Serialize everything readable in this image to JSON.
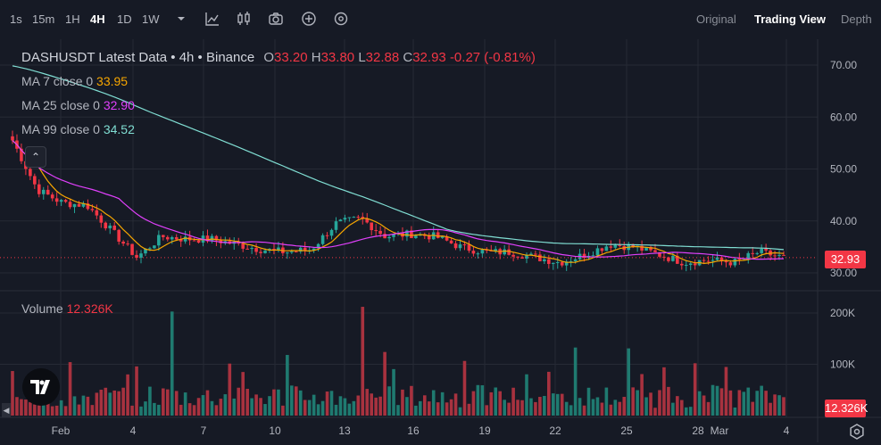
{
  "toolbar": {
    "intervals": [
      {
        "label": "1s",
        "active": false
      },
      {
        "label": "15m",
        "active": false
      },
      {
        "label": "1H",
        "active": false
      },
      {
        "label": "4H",
        "active": true
      },
      {
        "label": "1D",
        "active": false
      },
      {
        "label": "1W",
        "active": false
      }
    ],
    "views": [
      {
        "label": "Original",
        "active": false
      },
      {
        "label": "Trading View",
        "active": true
      },
      {
        "label": "Depth",
        "active": false
      }
    ]
  },
  "legend": {
    "title": "DASHUSDT Latest Data • 4h • Binance",
    "ohlc": {
      "o_key": "O",
      "o": "33.20",
      "h_key": "H",
      "h": "33.80",
      "l_key": "L",
      "l": "32.88",
      "c_key": "C",
      "c": "32.93",
      "change": "-0.27 (-0.81%)"
    },
    "ma7": {
      "label": "MA 7 close 0",
      "value": "33.95",
      "color": "#f7a600"
    },
    "ma25": {
      "label": "MA 25 close 0",
      "value": "32.90",
      "color": "#e040fb"
    },
    "ma99": {
      "label": "MA 99 close 0",
      "value": "34.52",
      "color": "#80ded3"
    },
    "volume": {
      "label": "Volume",
      "value": "12.326K"
    }
  },
  "price_axis": [
    "70.00",
    "60.00",
    "50.00",
    "40.00",
    "30.00"
  ],
  "volume_axis": [
    "200K",
    "100K"
  ],
  "current_price": "32.93",
  "current_volume": "12.326K",
  "time_axis": [
    "Feb",
    "4",
    "7",
    "10",
    "13",
    "16",
    "19",
    "22",
    "25",
    "28",
    "Mar",
    "4"
  ],
  "colors": {
    "up": "#26a69a",
    "down": "#f23645",
    "background": "#161a25",
    "grid": "#262a35"
  },
  "chart_data": {
    "type": "candlestick",
    "interval": "4h",
    "ylim": [
      28,
      73
    ],
    "volume_ylim": [
      0,
      240000
    ],
    "series_close_approx": [
      {
        "x": "Feb 1",
        "y": 55.5
      },
      {
        "x": "Feb 2",
        "y": 46
      },
      {
        "x": "Feb 3",
        "y": 43.5
      },
      {
        "x": "Feb 4",
        "y": 43
      },
      {
        "x": "Feb 5",
        "y": 38
      },
      {
        "x": "Feb 6",
        "y": 33
      },
      {
        "x": "Feb 7",
        "y": 37
      },
      {
        "x": "Feb 8",
        "y": 36.5
      },
      {
        "x": "Feb 9",
        "y": 36.5
      },
      {
        "x": "Feb 10",
        "y": 35.5
      },
      {
        "x": "Feb 11",
        "y": 34.5
      },
      {
        "x": "Feb 12",
        "y": 34
      },
      {
        "x": "Feb 13",
        "y": 34.5
      },
      {
        "x": "Feb 14",
        "y": 39.5
      },
      {
        "x": "Feb 15",
        "y": 40.5
      },
      {
        "x": "Feb 16",
        "y": 37
      },
      {
        "x": "Feb 17",
        "y": 37.5
      },
      {
        "x": "Feb 18",
        "y": 37
      },
      {
        "x": "Feb 19",
        "y": 35
      },
      {
        "x": "Feb 20",
        "y": 34
      },
      {
        "x": "Feb 21",
        "y": 34
      },
      {
        "x": "Feb 22",
        "y": 33
      },
      {
        "x": "Feb 23",
        "y": 32
      },
      {
        "x": "Feb 24",
        "y": 33.5
      },
      {
        "x": "Feb 25",
        "y": 35.5
      },
      {
        "x": "Feb 26",
        "y": 35
      },
      {
        "x": "Feb 27",
        "y": 33.5
      },
      {
        "x": "Feb 28",
        "y": 32
      },
      {
        "x": "Mar 1",
        "y": 32.5
      },
      {
        "x": "Mar 2",
        "y": 32
      },
      {
        "x": "Mar 3",
        "y": 34
      },
      {
        "x": "Mar 3 (last)",
        "y": 32.93
      }
    ]
  }
}
